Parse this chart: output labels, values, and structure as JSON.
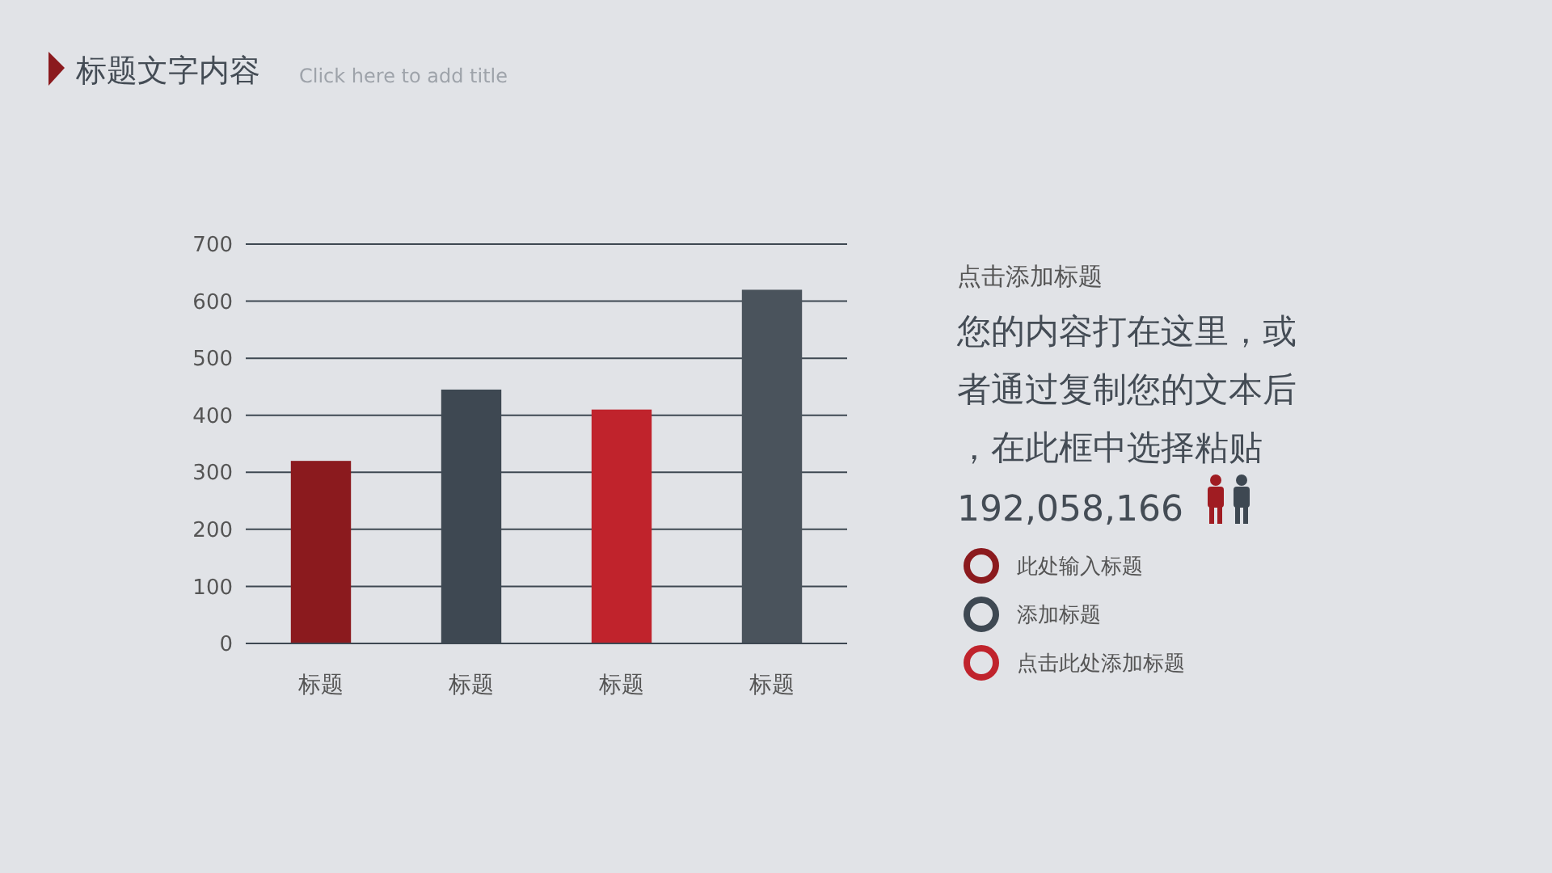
{
  "chart_data": {
    "type": "bar",
    "title": "标题文字内容",
    "categories": [
      "标题",
      "标题",
      "标题",
      "标题"
    ],
    "values": [
      320,
      445,
      410,
      620
    ],
    "colors": [
      "#8b1a1e",
      "#3e4852",
      "#c0232c",
      "#4a535c"
    ],
    "ylim": [
      0,
      700
    ],
    "yticks": [
      0,
      100,
      200,
      300,
      400,
      500,
      600,
      700
    ],
    "grid": "y",
    "annotations": [
      "Click here to add title",
      "点击添加标题",
      "您的内容打在这里，或者通过复制您的文本后，在此框中选择粘贴",
      "192,058,166",
      "此处输入标题",
      "添加标题",
      "点击此处添加标题"
    ]
  }
}
